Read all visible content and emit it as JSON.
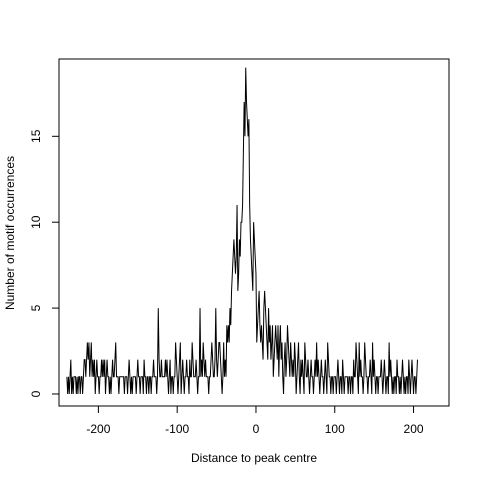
{
  "chart_data": {
    "type": "line",
    "title": "",
    "xlabel": "Distance to peak centre",
    "ylabel": "Number of motif occurrences",
    "xlim": [
      -250,
      245
    ],
    "ylim": [
      -0.7,
      19.5
    ],
    "x_ticks": [
      -200,
      -100,
      0,
      100,
      200
    ],
    "x_tick_labels": [
      "-200",
      "-100",
      "0",
      "100",
      "200"
    ],
    "y_ticks": [
      0,
      5,
      10,
      15
    ],
    "y_tick_labels": [
      "0",
      "5",
      "10",
      "15"
    ],
    "grid": false,
    "legend": "none",
    "line_color": "#000000",
    "series": [
      {
        "x_start": -240,
        "x_step": 1,
        "values": [
          1,
          0,
          1,
          0,
          1,
          2,
          0,
          1,
          0,
          1,
          1,
          1,
          0,
          1,
          0,
          1,
          1,
          0,
          1,
          1,
          0,
          1,
          2,
          2,
          1,
          2,
          3,
          2,
          3,
          1,
          2,
          3,
          1,
          2,
          1,
          2,
          0,
          1,
          2,
          1,
          1,
          0,
          1,
          1,
          2,
          1,
          2,
          1,
          2,
          0,
          1,
          2,
          1,
          1,
          0,
          1,
          0,
          1,
          2,
          1,
          1,
          2,
          3,
          1,
          1,
          1,
          0,
          1,
          1,
          1,
          1,
          1,
          1,
          0,
          1,
          1,
          1,
          0,
          1,
          2,
          1,
          0,
          1,
          0,
          1,
          1,
          1,
          1,
          0,
          1,
          2,
          1,
          1,
          0,
          1,
          1,
          1,
          0,
          2,
          1,
          1,
          0,
          1,
          1,
          0,
          1,
          1,
          0,
          1,
          1,
          2,
          1,
          1,
          1,
          0,
          1,
          5,
          2,
          1,
          1,
          2,
          1,
          1,
          1,
          1,
          2,
          1,
          2,
          1,
          0,
          1,
          2,
          0,
          1,
          1,
          0,
          1,
          1,
          3,
          2,
          1,
          0,
          1,
          2,
          3,
          0,
          1,
          2,
          1,
          0,
          1,
          1,
          2,
          1,
          1,
          0,
          2,
          1,
          1,
          3,
          2,
          1,
          1,
          1,
          2,
          1,
          0,
          1,
          1,
          5,
          1,
          2,
          1,
          3,
          2,
          1,
          2,
          1,
          1,
          1,
          0,
          1,
          1,
          2,
          3,
          2,
          1,
          1,
          2,
          5,
          2,
          1,
          2,
          3,
          3,
          2,
          1,
          0,
          1,
          3,
          1,
          2,
          1,
          4,
          3,
          4,
          3,
          5,
          4,
          6,
          7,
          8,
          9,
          8,
          7,
          8,
          11,
          6,
          7,
          9,
          8,
          10,
          10,
          11,
          14,
          17,
          15,
          19,
          17,
          16,
          15,
          16,
          11,
          9,
          8,
          7,
          6,
          10,
          9,
          8,
          7,
          3,
          4,
          5,
          6,
          4,
          3,
          4,
          3,
          2,
          5,
          6,
          5,
          4,
          3,
          2,
          5,
          3,
          4,
          2,
          3,
          4,
          1,
          2,
          3,
          4,
          3,
          2,
          4,
          1,
          3,
          4,
          2,
          3,
          1,
          0,
          2,
          3,
          1,
          2,
          4,
          3,
          2,
          1,
          3,
          2,
          1,
          2,
          1,
          3,
          2,
          0,
          1,
          2,
          3,
          1,
          0,
          2,
          1,
          2,
          1,
          0,
          3,
          2,
          1,
          1,
          2,
          1,
          0,
          1,
          2,
          1,
          1,
          0,
          1,
          2,
          1,
          3,
          1,
          2,
          1,
          0,
          1,
          2,
          1,
          1,
          0,
          1,
          2,
          1,
          0,
          3,
          2,
          1,
          1,
          0,
          1,
          1,
          0,
          1,
          1,
          1,
          0,
          1,
          2,
          1,
          0,
          1,
          1,
          0,
          2,
          1,
          0,
          1,
          1,
          1,
          1,
          0,
          1,
          1,
          0,
          1,
          1,
          0,
          2,
          1,
          1,
          3,
          2,
          1,
          0,
          3,
          1,
          2,
          1,
          1,
          0,
          1,
          3,
          2,
          1,
          1,
          0,
          1,
          1,
          2,
          1,
          0,
          3,
          1,
          2,
          1,
          0,
          1,
          1,
          0,
          1,
          1,
          1,
          2,
          1,
          0,
          1,
          2,
          1,
          0,
          1,
          1,
          0,
          3,
          1,
          2,
          1,
          0,
          1,
          0,
          1,
          1,
          0,
          2,
          1,
          1,
          0,
          1,
          0,
          1,
          2,
          1,
          0,
          1,
          0,
          1,
          1,
          0,
          2,
          1,
          0,
          1,
          2,
          1,
          0,
          1,
          1,
          0,
          1,
          2
        ]
      }
    ]
  }
}
